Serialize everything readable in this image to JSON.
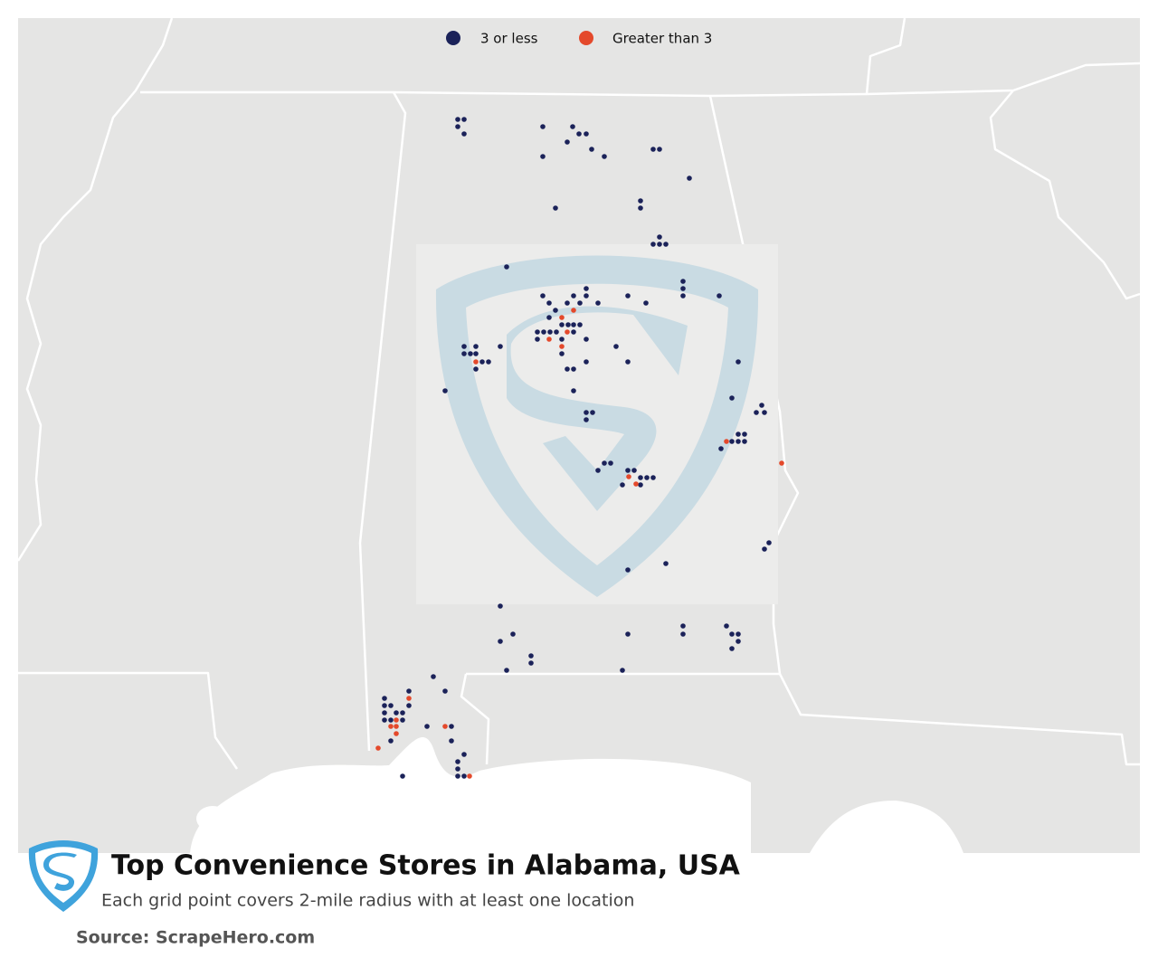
{
  "legend": [
    {
      "label": "3 or less",
      "color": "#1b2259"
    },
    {
      "label": "Greater than 3",
      "color": "#e4492b"
    }
  ],
  "title": "Top Convenience Stores in Alabama, USA",
  "subtitle": "Each grid point covers 2-mile radius with at least one location",
  "source": "Source: ScrapeHero.com"
}
